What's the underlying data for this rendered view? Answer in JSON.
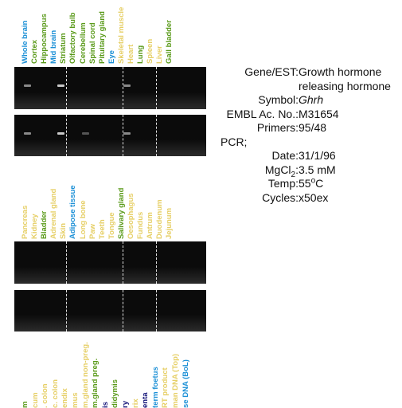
{
  "colors": {
    "blue": "#1a8fd6",
    "green": "#5a9a1a",
    "yellow": "#e6cf66",
    "navy": "#16167a"
  },
  "top_lanes": [
    {
      "label": "Whole brain",
      "color": "#1a8fd6"
    },
    {
      "label": "Cortex",
      "color": "#5a9a1a"
    },
    {
      "label": "Hippocampus",
      "color": "#5a9a1a"
    },
    {
      "label": "Mid brain",
      "color": "#1a8fd6"
    },
    {
      "label": "Striatum",
      "color": "#5a9a1a"
    },
    {
      "label": "Olfactory bulb",
      "color": "#5a9a1a"
    },
    {
      "label": "Cerebellum",
      "color": "#5a9a1a"
    },
    {
      "label": "Spinal cord",
      "color": "#5a9a1a"
    },
    {
      "label": "Pituitary gland",
      "color": "#5a9a1a"
    },
    {
      "label": "Eye",
      "color": "#1a8fd6"
    },
    {
      "label": "Skeletal muscle",
      "color": "#e6cf66"
    },
    {
      "label": "Heart",
      "color": "#e6cf66"
    },
    {
      "label": "Lung",
      "color": "#5a9a1a"
    },
    {
      "label": "Spleen",
      "color": "#e6cf66"
    },
    {
      "label": "Liver",
      "color": "#e6cf66"
    },
    {
      "label": "Gall bladder",
      "color": "#5a9a1a"
    }
  ],
  "mid_lanes": [
    {
      "label": "Pancreas",
      "color": "#e6cf66"
    },
    {
      "label": "Kidney",
      "color": "#e6cf66"
    },
    {
      "label": "Bladder",
      "color": "#5a9a1a"
    },
    {
      "label": "Adrenal gland",
      "color": "#e6cf66"
    },
    {
      "label": "Skin",
      "color": "#e6cf66"
    },
    {
      "label": "Adipose tissue",
      "color": "#1a8fd6"
    },
    {
      "label": "Long bone",
      "color": "#e6cf66"
    },
    {
      "label": "Paw",
      "color": "#e6cf66"
    },
    {
      "label": "Teeth",
      "color": "#e6cf66"
    },
    {
      "label": "Tongue",
      "color": "#e6cf66"
    },
    {
      "label": "Salivary gland",
      "color": "#5a9a1a"
    },
    {
      "label": "Oesophagus",
      "color": "#e6cf66"
    },
    {
      "label": "Fundus",
      "color": "#e6cf66"
    },
    {
      "label": "Antrum",
      "color": "#e6cf66"
    },
    {
      "label": "Duodenum",
      "color": "#e6cf66"
    },
    {
      "label": "Jejunum",
      "color": "#e6cf66"
    }
  ],
  "bottom_lanes": [
    {
      "label": "m",
      "color": "#5a9a1a"
    },
    {
      "label": "cum",
      "color": "#e6cf66"
    },
    {
      "label": ". colon",
      "color": "#e6cf66"
    },
    {
      "label": "c. colon",
      "color": "#e6cf66"
    },
    {
      "label": "endix",
      "color": "#e6cf66"
    },
    {
      "label": "mus",
      "color": "#e6cf66"
    },
    {
      "label": "m.gland non-preg.",
      "color": "#e6cf66"
    },
    {
      "label": "m.gland preg.",
      "color": "#5a9a1a"
    },
    {
      "label": "is",
      "color": "#16167a"
    },
    {
      "label": "didymis",
      "color": "#5a9a1a"
    },
    {
      "label": "ry",
      "color": "#16167a"
    },
    {
      "label": "rix",
      "color": "#e6cf66"
    },
    {
      "label": "enta",
      "color": "#16167a"
    },
    {
      "label": "term foetus",
      "color": "#1a8fd6"
    },
    {
      "label": "RT product",
      "color": "#e6cf66"
    },
    {
      "label": "man DNA (Top)",
      "color": "#e6cf66"
    },
    {
      "label": "se DNA (BoL)",
      "color": "#1a8fd6"
    }
  ],
  "info": {
    "gene_label": "Gene/EST:",
    "gene_value_1": "Growth hormone",
    "gene_value_2": "releasing hormone",
    "symbol_label": "Symbol:",
    "symbol_value": "Ghrh",
    "embl_label": "EMBL Ac. No.:",
    "embl_value": "M31654",
    "primers_label": "Primers:",
    "primers_value": "95/48",
    "pcr_label": "PCR;",
    "date_label": "Date:",
    "date_value": "31/1/96",
    "mgcl_label_pre": "MgCl",
    "mgcl_label_sub": "2",
    "mgcl_label_post": ":",
    "mgcl_value": "3.5 mM",
    "temp_label": "Temp:",
    "temp_value_num": "55",
    "temp_value_sup": "o",
    "temp_value_unit": "C",
    "cycles_label": "Cycles:",
    "cycles_value": "x50ex"
  }
}
